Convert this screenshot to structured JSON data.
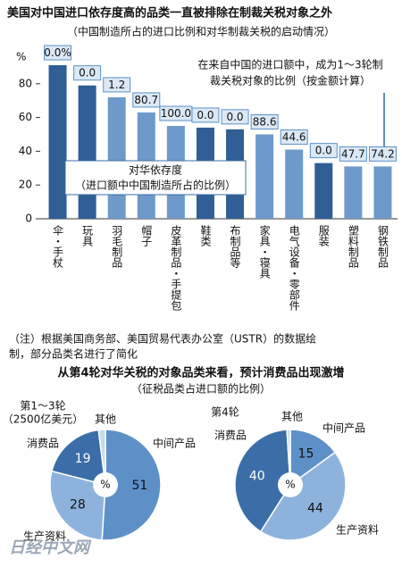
{
  "chart_data": [
    {
      "type": "bar",
      "title": "美国对中国进口依存度高的品类一直被排除在制裁关税对象之外",
      "subtitle": "（中国制造所占的进口比例和对华制裁关税的启动情况）",
      "y_label": "%",
      "categories": [
        "伞・手杖",
        "玩具",
        "羽毛制品",
        "帽子",
        "皮革制品・手提包",
        "鞋类",
        "布制品等",
        "家具・寝具",
        "电气设备・零部件",
        "服装",
        "塑料制品",
        "钢铁制品"
      ],
      "values": [
        91,
        79,
        72,
        63,
        55,
        54,
        53,
        50,
        41,
        33,
        31,
        31
      ],
      "colors": [
        "#2f5f94",
        "#2f5f94",
        "#6d9acb",
        "#6d9acb",
        "#6d9acb",
        "#2f5f94",
        "#2f5f94",
        "#6d9acb",
        "#6d9acb",
        "#2f5f94",
        "#6d9acb",
        "#6d9acb"
      ],
      "ylim": [
        0,
        100
      ],
      "yticks": [
        0,
        20,
        40,
        60,
        80
      ],
      "bar_labels": {
        "values": [
          0,
          0,
          1.2,
          80.7,
          100,
          0,
          0,
          88.6,
          44.6,
          0,
          47.7,
          74.2
        ],
        "value_labels": [
          "0.0%",
          "0.0",
          "1.2",
          "80.7",
          "100.0",
          "0.0",
          "0.0",
          "88.6",
          "44.6",
          "0.0",
          "47.7",
          "74.2"
        ]
      },
      "annotations": [
        [
          "在来自中国的进口额中，成为1～3轮制",
          "裁关税对象的比例（按金额计算）"
        ],
        [
          "对华依存度",
          "（进口额中中国制造所占的比例）"
        ]
      ],
      "note": [
        "（注）根据美国商务部、美国贸易代表办公室（USTR）的数据绘",
        "制，部分品类名进行了简化"
      ]
    },
    {
      "type": "pie",
      "title": "从第4轮对华关税的对象品类来看，预计消费品出现激增",
      "subtitle": "（征税品类占进口额的比例）",
      "label": [
        "第1～3轮",
        "（2500亿美元）"
      ],
      "center_label": "%",
      "categories": [
        "中间产品",
        "生产资料",
        "消费品",
        "其他"
      ],
      "values": [
        51,
        28,
        19,
        2
      ],
      "value_labels": [
        "51",
        "28",
        "19",
        null
      ],
      "colors": [
        "#5e90c8",
        "#8db3dd",
        "#3b6ea8",
        "#c7daef"
      ]
    },
    {
      "type": "pie",
      "label": [
        "第4轮"
      ],
      "center_label": "%",
      "categories": [
        "中间产品",
        "生产资料",
        "消费品",
        "其他"
      ],
      "values": [
        15,
        44,
        40,
        1
      ],
      "value_labels": [
        "15",
        "44",
        "40",
        null
      ],
      "colors": [
        "#5e90c8",
        "#8db3dd",
        "#3b6ea8",
        "#c7daef"
      ]
    }
  ],
  "watermark": "日经中文网"
}
